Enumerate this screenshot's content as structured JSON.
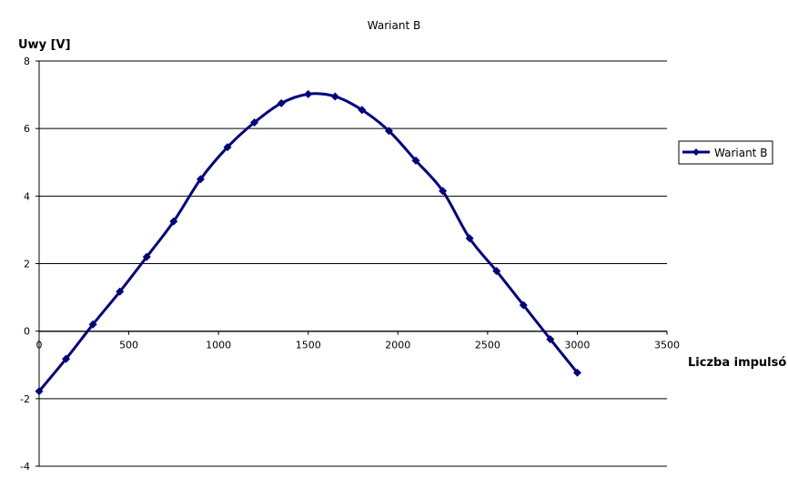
{
  "chart_data": {
    "type": "line",
    "title": "Wariant B",
    "xlabel": "Liczba impulsó",
    "ylabel": "Uwy [V]",
    "xlim": [
      0,
      3500
    ],
    "ylim": [
      -4,
      8
    ],
    "xticks": [
      0,
      500,
      1000,
      1500,
      2000,
      2500,
      3000,
      3500
    ],
    "yticks": [
      -4,
      -2,
      0,
      2,
      4,
      6,
      8
    ],
    "grid": "horizontal",
    "legend": "right",
    "series": [
      {
        "name": "Wariant B",
        "color": "#000080",
        "marker": "diamond",
        "smooth": true,
        "x": [
          0,
          150,
          300,
          450,
          600,
          750,
          900,
          1050,
          1200,
          1350,
          1500,
          1650,
          1800,
          1950,
          2100,
          2250,
          2400,
          2550,
          2700,
          2850,
          3000
        ],
        "y": [
          -1.78,
          -0.82,
          0.2,
          1.17,
          2.2,
          3.25,
          4.5,
          5.45,
          6.18,
          6.75,
          7.02,
          6.95,
          6.55,
          5.93,
          5.05,
          4.15,
          2.75,
          1.78,
          0.77,
          -0.24,
          -1.23
        ]
      }
    ]
  }
}
